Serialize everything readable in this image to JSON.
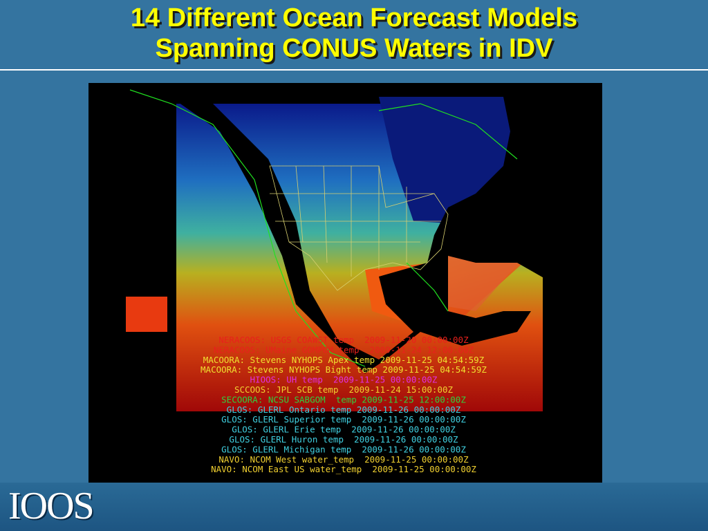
{
  "header": {
    "title_lines": [
      "14 Different Ocean Forecast Models",
      "Spanning CONUS Waters in IDV"
    ]
  },
  "legend": {
    "entries": [
      {
        "text": "NERACOOS: USGS COAWST temp  2009-11-20 00:00:00Z",
        "color": "#e8201c"
      },
      {
        "text": "NERACOOS: UMaine GOMPOM temp  2009-11-24 12:00:00Z",
        "color": "#e8201c"
      },
      {
        "text": "MACOORA: Stevens NYHOPS Apex temp 2009-11-25 04:54:59Z",
        "color": "#f0e030"
      },
      {
        "text": "MACOORA: Stevens NYHOPS Bight temp 2009-11-25 04:54:59Z",
        "color": "#f0e030"
      },
      {
        "text": "HIOOS: UH temp  2009-11-25 00:00:00Z",
        "color": "#e030e0"
      },
      {
        "text": "SCCOOS: JPL SCB temp  2009-11-24 15:00:00Z",
        "color": "#f0d030"
      },
      {
        "text": "SECOORA: NCSU SABGOM  temp 2009-11-25 12:00:00Z",
        "color": "#30d040"
      },
      {
        "text": "GLOS: GLERL Ontario temp 2009-11-26 00:00:00Z",
        "color": "#40d0e0"
      },
      {
        "text": "GLOS: GLERL Superior temp  2009-11-26 00:00:00Z",
        "color": "#40d0e0"
      },
      {
        "text": "GLOS: GLERL Erie temp  2009-11-26 00:00:00Z",
        "color": "#40d0e0"
      },
      {
        "text": "GLOS: GLERL Huron temp  2009-11-26 00:00:00Z",
        "color": "#40d0e0"
      },
      {
        "text": "GLOS: GLERL Michigan temp  2009-11-26 00:00:00Z",
        "color": "#40d0e0"
      },
      {
        "text": "NAVO: NCOM West water_temp  2009-11-25 00:00:00Z",
        "color": "#f0d030"
      },
      {
        "text": "NAVO: NCOM East US water_temp  2009-11-25 00:00:00Z",
        "color": "#f0d030"
      }
    ]
  },
  "footer": {
    "logo": "IOOS"
  }
}
